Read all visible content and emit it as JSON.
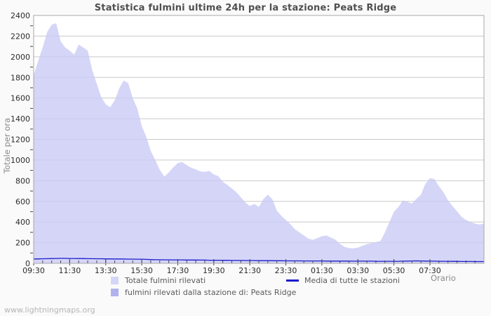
{
  "watermark": "www.lightningmaps.org",
  "chart_data": {
    "type": "area",
    "title": "Statistica fulmini ultime 24h per la stazione: Peats Ridge",
    "xlabel": "Orario",
    "ylabel": "Totale per ora",
    "ylim": [
      0,
      2400
    ],
    "y_ticks": [
      0,
      200,
      400,
      600,
      800,
      1000,
      1200,
      1400,
      1600,
      1800,
      2000,
      2200,
      2400
    ],
    "y_minor_step": 100,
    "grid": "horizontal",
    "legend_position": "bottom",
    "x_interval_minutes": 15,
    "x_times": [
      "09:30",
      "09:45",
      "10:00",
      "10:15",
      "10:30",
      "10:45",
      "11:00",
      "11:15",
      "11:30",
      "11:45",
      "12:00",
      "12:15",
      "12:30",
      "12:45",
      "13:00",
      "13:15",
      "13:30",
      "13:45",
      "14:00",
      "14:15",
      "14:30",
      "14:45",
      "15:00",
      "15:15",
      "15:30",
      "15:45",
      "16:00",
      "16:15",
      "16:30",
      "16:45",
      "17:00",
      "17:15",
      "17:30",
      "17:45",
      "18:00",
      "18:15",
      "18:30",
      "18:45",
      "19:00",
      "19:15",
      "19:30",
      "19:45",
      "20:00",
      "20:15",
      "20:30",
      "20:45",
      "21:00",
      "21:15",
      "21:30",
      "21:45",
      "22:00",
      "22:15",
      "22:30",
      "22:45",
      "23:00",
      "23:15",
      "23:30",
      "23:45",
      "00:00",
      "00:15",
      "00:30",
      "00:45",
      "01:00",
      "01:15",
      "01:30",
      "01:45",
      "02:00",
      "02:15",
      "02:30",
      "02:45",
      "03:00",
      "03:15",
      "03:30",
      "03:45",
      "04:00",
      "04:15",
      "04:30",
      "04:45",
      "05:00",
      "05:15",
      "05:30",
      "05:45",
      "06:00",
      "06:15",
      "06:30",
      "06:45",
      "07:00",
      "07:15",
      "07:30",
      "07:45",
      "08:00",
      "08:15",
      "08:30",
      "08:45",
      "09:00",
      "09:15",
      "09:30",
      "09:45",
      "10:00",
      "10:15",
      "10:30"
    ],
    "x_tick_labels": [
      {
        "index": 0,
        "label": "09:30"
      },
      {
        "index": 8,
        "label": "11:30"
      },
      {
        "index": 16,
        "label": "13:30"
      },
      {
        "index": 24,
        "label": "15:30"
      },
      {
        "index": 32,
        "label": "17:30"
      },
      {
        "index": 40,
        "label": "19:30"
      },
      {
        "index": 48,
        "label": "21:30"
      },
      {
        "index": 56,
        "label": "23:30"
      },
      {
        "index": 64,
        "label": "01:30"
      },
      {
        "index": 72,
        "label": "03:30"
      },
      {
        "index": 80,
        "label": "05:30"
      },
      {
        "index": 88,
        "label": "07:30"
      }
    ],
    "series": [
      {
        "name": "Totale fulmini rilevati",
        "type": "area",
        "color": "#cbcbf5",
        "values": [
          1820,
          1960,
          2090,
          2240,
          2310,
          2325,
          2150,
          2090,
          2060,
          2020,
          2120,
          2090,
          2060,
          1870,
          1740,
          1610,
          1540,
          1512,
          1580,
          1695,
          1770,
          1745,
          1600,
          1500,
          1330,
          1225,
          1090,
          1000,
          905,
          840,
          880,
          930,
          970,
          980,
          950,
          925,
          910,
          890,
          885,
          895,
          860,
          845,
          790,
          760,
          725,
          690,
          640,
          590,
          555,
          575,
          545,
          620,
          665,
          620,
          510,
          460,
          420,
          380,
          330,
          300,
          270,
          240,
          228,
          245,
          262,
          270,
          250,
          230,
          190,
          160,
          148,
          145,
          152,
          170,
          185,
          195,
          205,
          215,
          300,
          400,
          500,
          545,
          610,
          595,
          580,
          625,
          665,
          770,
          825,
          815,
          745,
          690,
          610,
          555,
          505,
          450,
          420,
          400,
          385,
          375,
          385
        ]
      },
      {
        "name": "fulmini rilevati dalla stazione di: Peats Ridge",
        "type": "area",
        "color": "#b1b1ee",
        "values": [
          0,
          0,
          0,
          0,
          0,
          0,
          0,
          0,
          0,
          0,
          0,
          0,
          0,
          0,
          0,
          0,
          0,
          0,
          0,
          0,
          0,
          0,
          0,
          0,
          0,
          0,
          0,
          0,
          0,
          0,
          0,
          0,
          0,
          0,
          0,
          0,
          0,
          0,
          0,
          0,
          0,
          0,
          0,
          0,
          0,
          0,
          0,
          0,
          0,
          0,
          0,
          0,
          0,
          0,
          0,
          0,
          0,
          0,
          0,
          0,
          0,
          0,
          0,
          0,
          0,
          0,
          0,
          0,
          0,
          0,
          0,
          0,
          0,
          0,
          0,
          0,
          0,
          0,
          0,
          0,
          0,
          0,
          0,
          0,
          0,
          0,
          0,
          0,
          0,
          0,
          0,
          0,
          0,
          0,
          0,
          0,
          0,
          0,
          0,
          0,
          0
        ]
      },
      {
        "name": "Media di tutte le stazioni",
        "type": "line",
        "color": "#1a1acd",
        "values": [
          42,
          43,
          44,
          45,
          46,
          47,
          48,
          48,
          47,
          47,
          46,
          46,
          45,
          45,
          44,
          44,
          43,
          43,
          42,
          42,
          42,
          41,
          41,
          40,
          40,
          38,
          36,
          35,
          35,
          34,
          34,
          33,
          33,
          33,
          32,
          32,
          32,
          31,
          31,
          30,
          30,
          30,
          29,
          29,
          28,
          28,
          28,
          27,
          27,
          27,
          26,
          26,
          26,
          25,
          25,
          25,
          24,
          24,
          24,
          24,
          23,
          23,
          23,
          23,
          23,
          22,
          22,
          22,
          22,
          22,
          22,
          21,
          21,
          21,
          21,
          21,
          20,
          20,
          20,
          20,
          20,
          20,
          21,
          22,
          23,
          24,
          23,
          22,
          21,
          21,
          20,
          20,
          20,
          19,
          19,
          18,
          18,
          18,
          17,
          17,
          17
        ]
      }
    ],
    "colors": {
      "plot_bg": "#ffffff",
      "page_bg": "#fafafa",
      "grid": "#c9c9c9",
      "border": "#a8a8a8",
      "tick": "#444444",
      "tick_text": "#2b2b2b",
      "axis_title": "#8a8a8a",
      "legend_text": "#5a5a5a",
      "title_text": "#4f4f4f",
      "watermark_text": "#b5b5b5",
      "total_swatch": "#d5d5f7",
      "total_fill_opacity": 0.8
    }
  }
}
